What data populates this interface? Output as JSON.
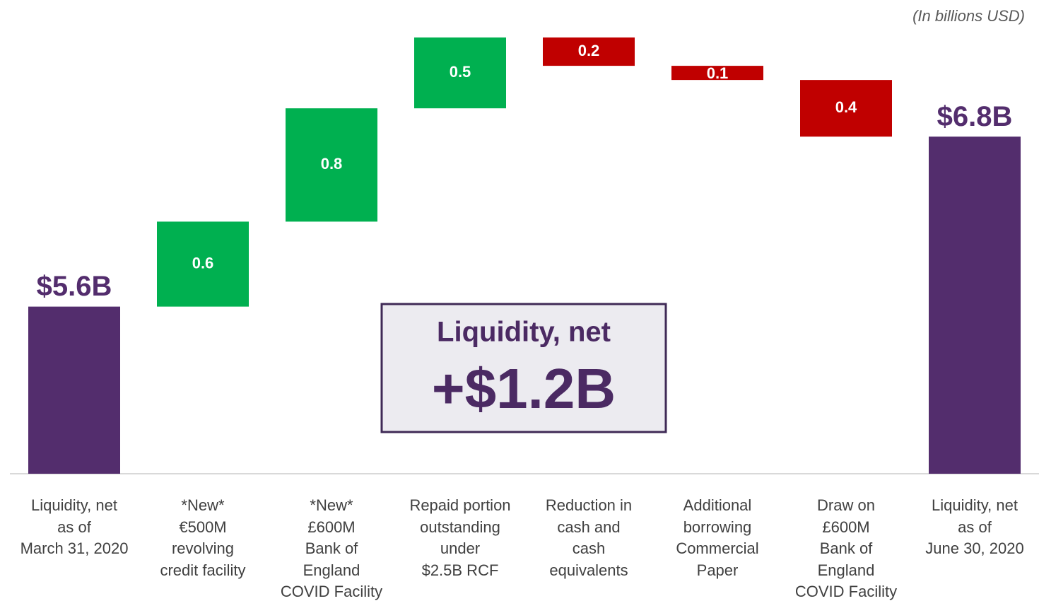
{
  "chart_data": {
    "type": "waterfall",
    "subtitle": "(In billions USD)",
    "categories": [
      "Liquidity, net\nas of\nMarch 31, 2020",
      "*New*\n€500M\nrevolving\ncredit facility",
      "*New*\n£600M\nBank of\nEngland\nCOVID Facility",
      "Repaid portion\noutstanding\nunder\n$2.5B RCF",
      "Reduction in\ncash and\ncash\nequivalents",
      "Additional\nborrowing\nCommercial\nPaper",
      "Draw on\n£600M\nBank of\nEngland\nCOVID Facility",
      "Liquidity, net\nas of\nJune 30, 2020"
    ],
    "values": [
      5.6,
      0.6,
      0.8,
      0.5,
      -0.2,
      -0.1,
      -0.4,
      6.8
    ],
    "value_labels": [
      "$5.6B",
      "0.6",
      "0.8",
      "0.5",
      "0.2",
      "0.1",
      "0.4",
      "$6.8B"
    ],
    "colors": [
      "#532d6d",
      "#00b050",
      "#00b050",
      "#00b050",
      "#c00000",
      "#c00000",
      "#c00000",
      "#532d6d"
    ],
    "ylim": [
      4.42,
      7.6
    ],
    "annotations": [
      {
        "title": "Liquidity, net",
        "value": "+$1.2B"
      }
    ]
  }
}
